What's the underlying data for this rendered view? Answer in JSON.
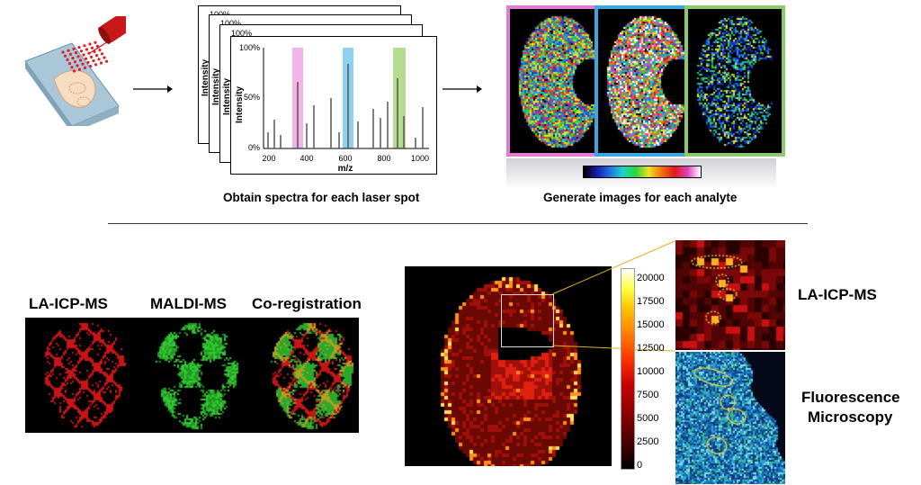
{
  "top": {
    "spectra_caption": "Obtain spectra for each laser spot",
    "images_caption": "Generate images for each analyte"
  },
  "spectrum": {
    "y_label": "Intensity",
    "x_label": "m/z",
    "y_ticks": [
      "100%",
      "50%",
      "0%"
    ],
    "back_top_ticks": [
      "100%",
      "100%",
      "100%"
    ],
    "x_ticks": [
      "200",
      "400",
      "600",
      "800",
      "1000"
    ],
    "highlight_colors": [
      "#f4b3e8",
      "#8ed0f0",
      "#b5dc8c"
    ]
  },
  "image_frame_colors": [
    "#e27bd1",
    "#3aa8e0",
    "#8cc96a"
  ],
  "bottom_left": {
    "labels": [
      "LA-ICP-MS",
      "MALDI-MS",
      "Co-registration"
    ]
  },
  "heatmap": {
    "colorbar_ticks": [
      "20000",
      "17500",
      "15000",
      "12500",
      "10000",
      "7500",
      "5000",
      "2500",
      "0"
    ]
  },
  "right_labels": {
    "la_icp": "LA-ICP-MS",
    "fluor_line1": "Fluorescence",
    "fluor_line2": "Microscopy"
  }
}
